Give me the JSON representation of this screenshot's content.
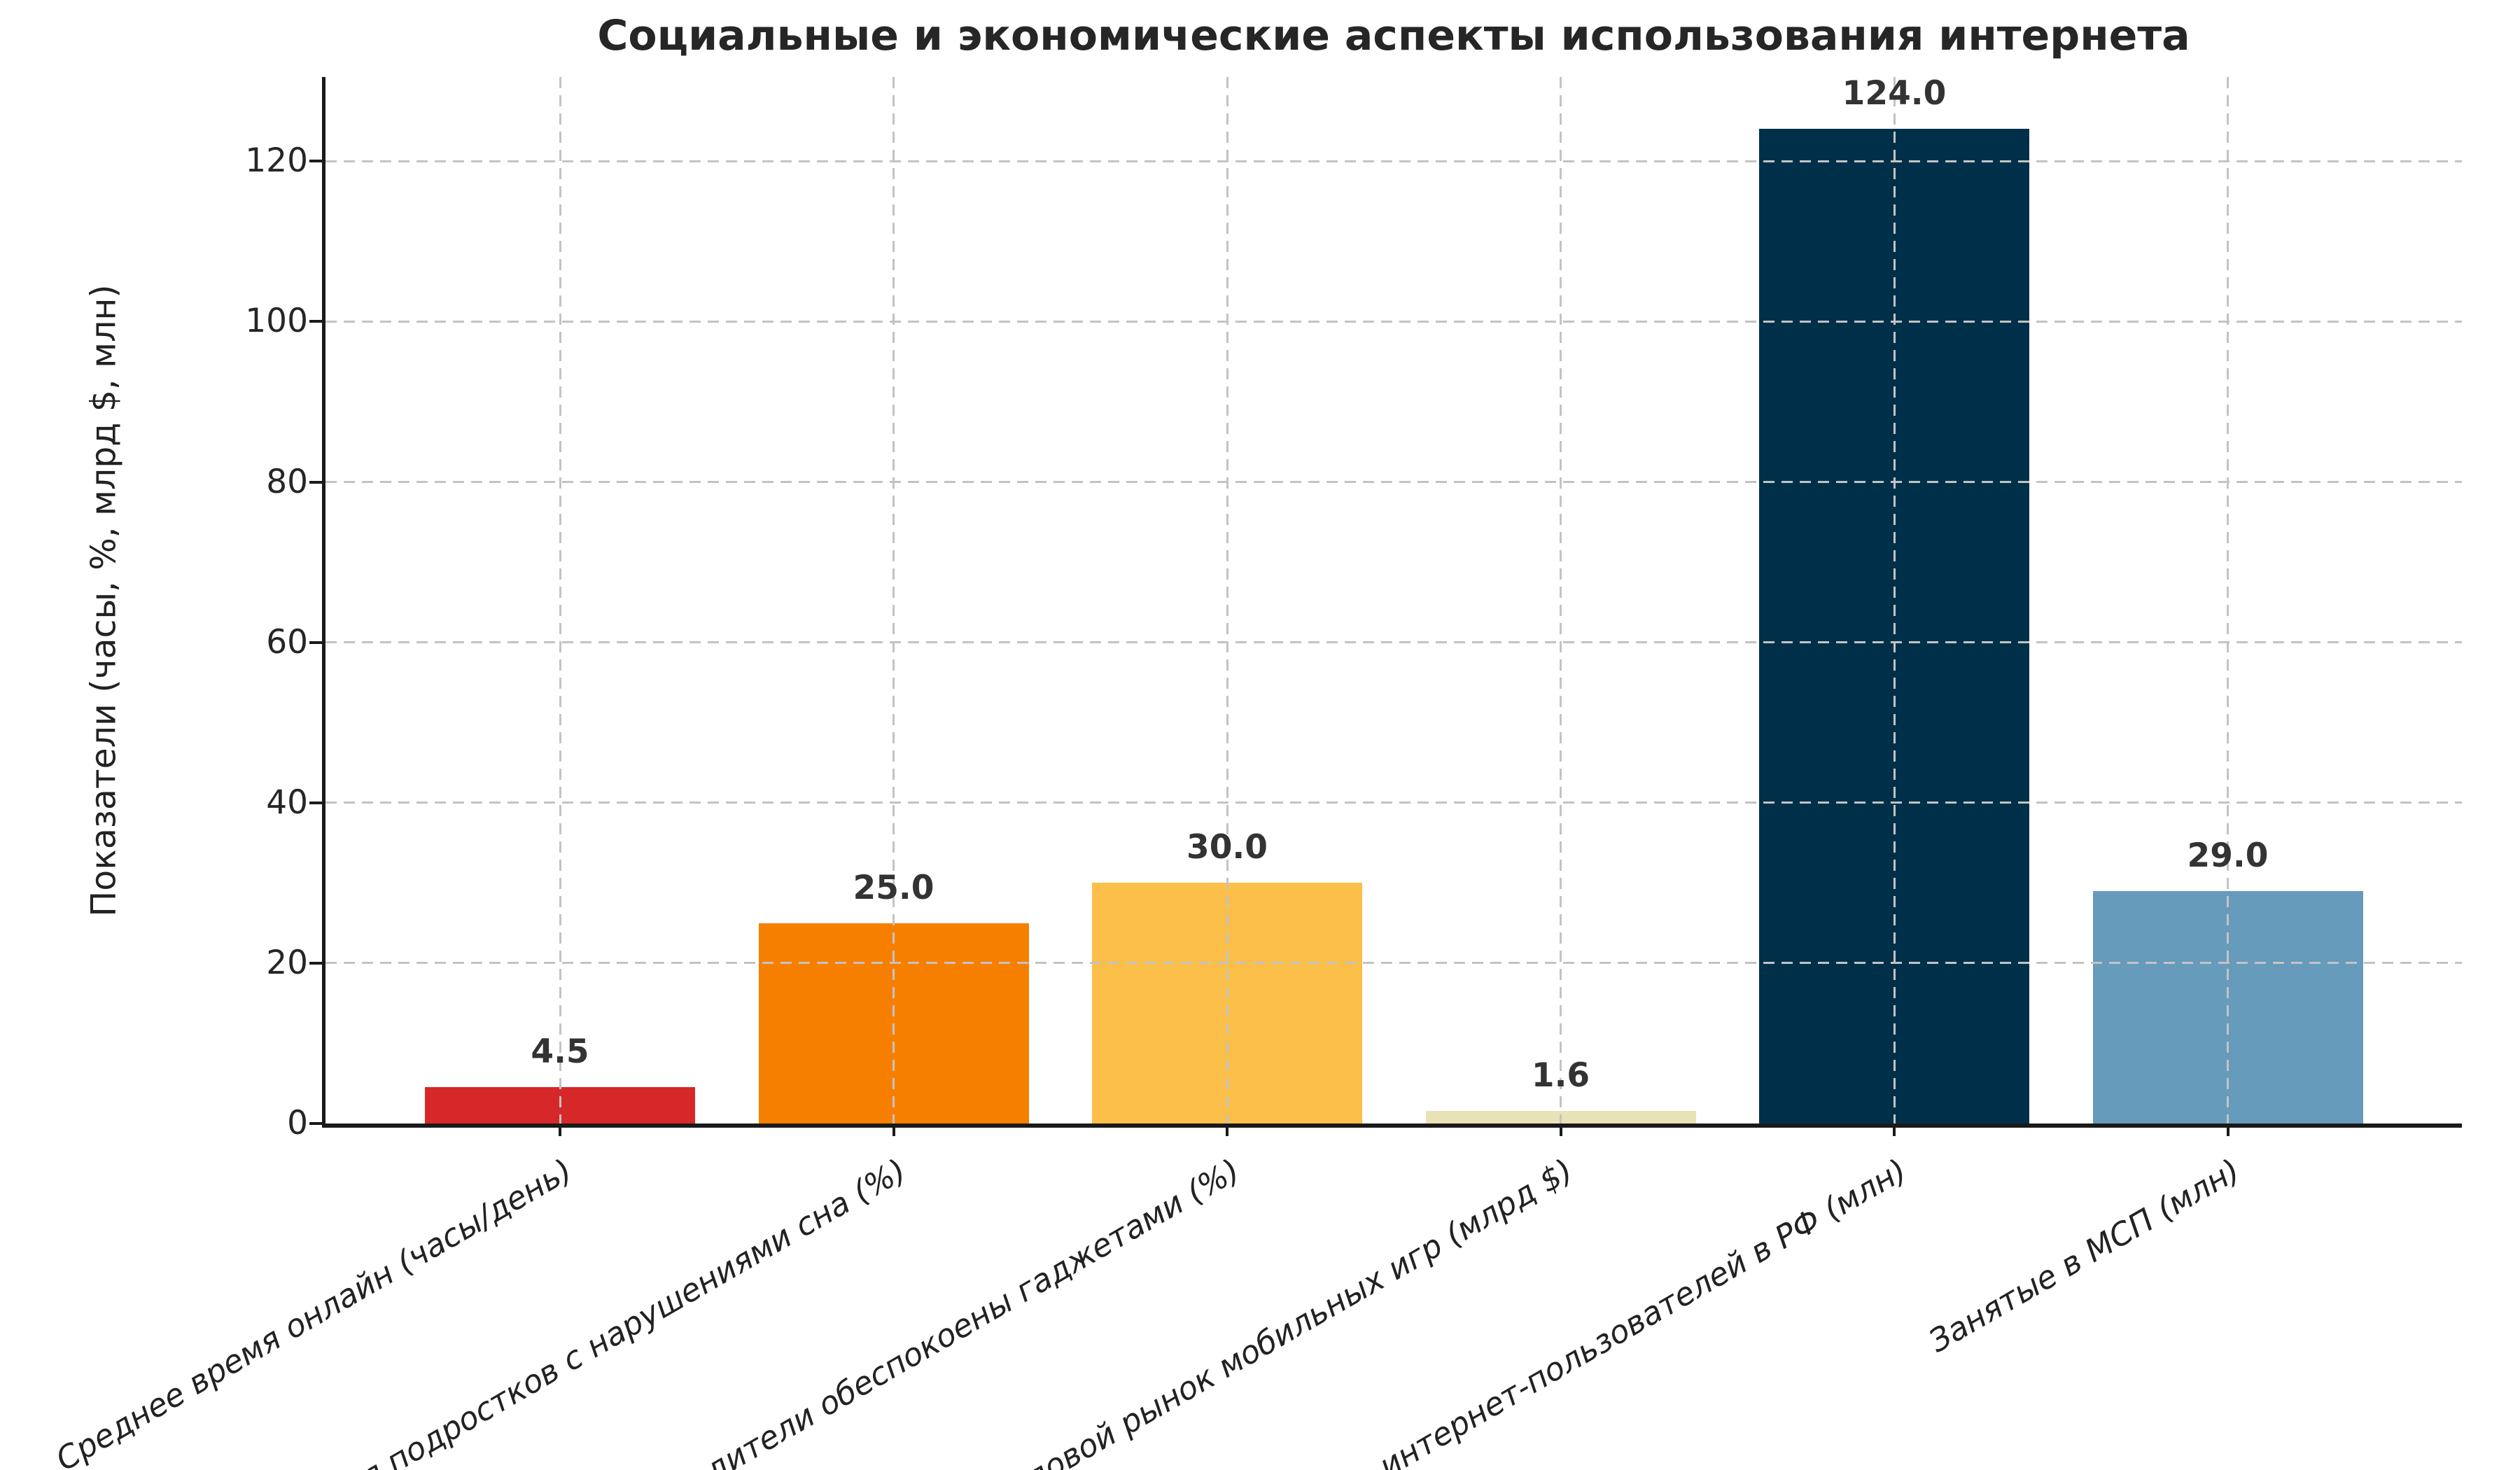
{
  "chart_data": {
    "type": "bar",
    "title": "Социальные и экономические аспекты использования интернета",
    "ylabel": "Показатели (часы, %, млрд $, млн)",
    "xlabel": "",
    "categories": [
      "Среднее время онлайн (часы/день)",
      "Доля подростков с нарушениями сна (%)",
      "Родители обеспокоены гаджетами (%)",
      "Годовой рынок мобильных игр (млрд $)",
      "Число интернет-пользователей в РФ (млн)",
      "Занятые в МСП (млн)"
    ],
    "values": [
      4.5,
      25.0,
      30.0,
      1.6,
      124.0,
      29.0
    ],
    "bar_labels": [
      "4.5",
      "25.0",
      "30.0",
      "1.6",
      "124.0",
      "29.0"
    ],
    "colors": [
      "#d62828",
      "#f77f00",
      "#fcbf49",
      "#eae2b7",
      "#003049",
      "#669bbc"
    ],
    "yticks": [
      0,
      20,
      40,
      60,
      80,
      100,
      120
    ],
    "ytick_labels": [
      "0",
      "20",
      "40",
      "60",
      "80",
      "100",
      "120"
    ],
    "ylim": [
      0,
      130.5
    ],
    "grid": "dashed gray, horizontal and vertical, drawn over bars",
    "legend": "none",
    "background": "#ffffff",
    "xtick_label_rotation_deg": 30
  }
}
